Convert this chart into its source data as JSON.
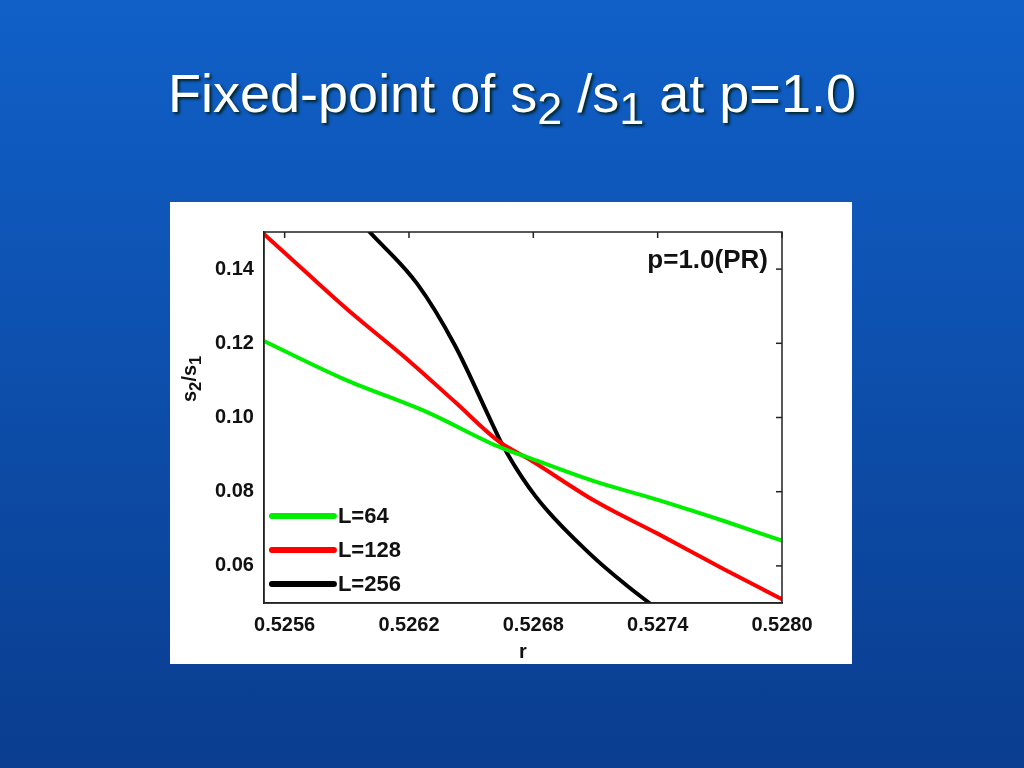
{
  "chart_data": {
    "type": "line",
    "title": "Fixed-point of s$_{2}$ /s$_{1}$ at p=1.0",
    "xlabel": "r",
    "ylabel": "s$_{2}$/s$_{1}$",
    "annotations": [
      "p=1.0(PR)"
    ],
    "xlim": [
      0.5255,
      0.528
    ],
    "xticks": [
      0.5256,
      0.5262,
      0.5268,
      0.5274,
      {
        "value": 0.528,
        "label": "0.5280"
      }
    ],
    "ylim": [
      0.05,
      0.15
    ],
    "yticks": [
      0.06,
      0.08,
      {
        "value": 0.1,
        "label": "0.10"
      },
      0.12,
      0.14
    ],
    "grid": false,
    "legend": "bottom left",
    "marker": "none",
    "line_style": "solid",
    "series": [
      {
        "name": "L=64",
        "color": "#00ee00",
        "x": [
          0.5255,
          0.52588,
          0.52629,
          0.52663,
          0.52679,
          0.5271,
          0.5274,
          0.52772,
          0.528
        ],
        "values": [
          0.1206,
          0.1105,
          0.1014,
          0.0922,
          0.0889,
          0.0827,
          0.0778,
          0.0721,
          0.0668
        ]
      },
      {
        "name": "L=128",
        "color": "#ff0000",
        "x": [
          0.5255,
          0.52571,
          0.52592,
          0.52617,
          0.52642,
          0.52663,
          0.52679,
          0.5271,
          0.5274,
          0.52772,
          0.528
        ],
        "values": [
          0.1495,
          0.1388,
          0.1283,
          0.1167,
          0.1043,
          0.0937,
          0.0884,
          0.0774,
          0.0687,
          0.0591,
          0.051
        ]
      },
      {
        "name": "L=256",
        "color": "#000000",
        "x": [
          0.52601,
          0.52624,
          0.52642,
          0.5266,
          0.52665,
          0.52681,
          0.52708,
          0.52726,
          0.52736
        ],
        "values": [
          0.15,
          0.136,
          0.1196,
          0.0985,
          0.0927,
          0.0788,
          0.0629,
          0.0543,
          0.05
        ]
      }
    ]
  }
}
